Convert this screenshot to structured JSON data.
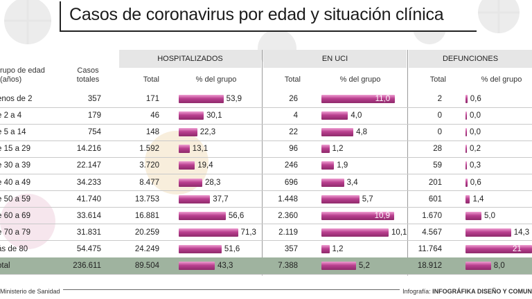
{
  "title": "Casos de coronavirus por edad y situación clínica",
  "groups": {
    "hospitalizados": "HOSPITALIZADOS",
    "uci": "EN UCI",
    "defunciones": "DEFUNCIONES"
  },
  "columns": {
    "grupo": "rupo de edad (años)",
    "casos": "Casos totales",
    "total": "Total",
    "pct": "% del grupo"
  },
  "footer": {
    "source": "Ministerio de Sanidad",
    "credit_label": "Infografía:",
    "credit": "INFOGRÁFIKA DISEÑO Y COMUN"
  },
  "chart_data": {
    "type": "table",
    "rows": [
      {
        "grupo": "enos de 2",
        "casos": "357",
        "hosp_total": "171",
        "hosp_pct": "53,9",
        "uci_total": "26",
        "uci_pct": "11,0",
        "def_total": "2",
        "def_pct": "0,6",
        "hosp_v": 53.9,
        "uci_v": 11.0,
        "def_v": 0.6
      },
      {
        "grupo": "e 2 a 4",
        "casos": "179",
        "hosp_total": "46",
        "hosp_pct": "30,1",
        "uci_total": "4",
        "uci_pct": "4,0",
        "def_total": "0",
        "def_pct": "0,0",
        "hosp_v": 30.1,
        "uci_v": 4.0,
        "def_v": 0.0
      },
      {
        "grupo": "e 5 a 14",
        "casos": "754",
        "hosp_total": "148",
        "hosp_pct": "22,3",
        "uci_total": "22",
        "uci_pct": "4,8",
        "def_total": "0",
        "def_pct": "0,0",
        "hosp_v": 22.3,
        "uci_v": 4.8,
        "def_v": 0.0
      },
      {
        "grupo": "e 15 a 29",
        "casos": "14.216",
        "hosp_total": "1.592",
        "hosp_pct": "13,1",
        "uci_total": "96",
        "uci_pct": "1,2",
        "def_total": "28",
        "def_pct": "0,2",
        "hosp_v": 13.1,
        "uci_v": 1.2,
        "def_v": 0.2
      },
      {
        "grupo": "e 30 a 39",
        "casos": "22.147",
        "hosp_total": "3.720",
        "hosp_pct": "19,4",
        "uci_total": "246",
        "uci_pct": "1,9",
        "def_total": "59",
        "def_pct": "0,3",
        "hosp_v": 19.4,
        "uci_v": 1.9,
        "def_v": 0.3
      },
      {
        "grupo": "e 40 a 49",
        "casos": "34.233",
        "hosp_total": "8.477",
        "hosp_pct": "28,3",
        "uci_total": "696",
        "uci_pct": "3,4",
        "def_total": "201",
        "def_pct": "0,6",
        "hosp_v": 28.3,
        "uci_v": 3.4,
        "def_v": 0.6
      },
      {
        "grupo": "e 50 a 59",
        "casos": "41.740",
        "hosp_total": "13.753",
        "hosp_pct": "37,7",
        "uci_total": "1.448",
        "uci_pct": "5,7",
        "def_total": "601",
        "def_pct": "1,4",
        "hosp_v": 37.7,
        "uci_v": 5.7,
        "def_v": 1.4
      },
      {
        "grupo": "e 60 a 69",
        "casos": "33.614",
        "hosp_total": "16.881",
        "hosp_pct": "56,6",
        "uci_total": "2.360",
        "uci_pct": "10,9",
        "def_total": "1.670",
        "def_pct": "5,0",
        "hosp_v": 56.6,
        "uci_v": 10.9,
        "def_v": 5.0
      },
      {
        "grupo": "e 70 a 79",
        "casos": "31.831",
        "hosp_total": "20.259",
        "hosp_pct": "71,3",
        "uci_total": "2.119",
        "uci_pct": "10,1",
        "def_total": "4.567",
        "def_pct": "14,3",
        "hosp_v": 71.3,
        "uci_v": 10.1,
        "def_v": 14.3
      },
      {
        "grupo": "ás de 80",
        "casos": "54.475",
        "hosp_total": "24.249",
        "hosp_pct": "51,6",
        "uci_total": "357",
        "uci_pct": "1,2",
        "def_total": "11.764",
        "def_pct": "21",
        "hosp_v": 51.6,
        "uci_v": 1.2,
        "def_v": 21.0
      }
    ],
    "total": {
      "grupo": "otal",
      "casos": "236.611",
      "hosp_total": "89.504",
      "hosp_pct": "43,3",
      "uci_total": "7.388",
      "uci_pct": "5,2",
      "def_total": "18.912",
      "def_pct": "8,0",
      "hosp_v": 43.3,
      "uci_v": 5.2,
      "def_v": 8.0
    }
  }
}
